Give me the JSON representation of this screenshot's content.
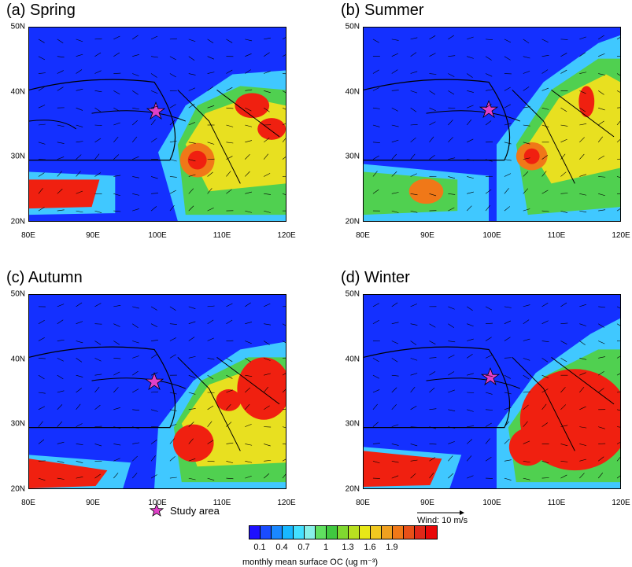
{
  "panels": [
    {
      "title": "(a) Spring"
    },
    {
      "title": "(b) Summer"
    },
    {
      "title": "(c) Autumn"
    },
    {
      "title": "(d) Winter"
    }
  ],
  "axes": {
    "lat_labels": [
      "50N",
      "40N",
      "30N",
      "20N"
    ],
    "lon_labels": [
      "80E",
      "90E",
      "100E",
      "110E",
      "120E"
    ]
  },
  "legend": {
    "study_area_label": "Study area",
    "colorbar_ticks": [
      "0.1",
      "0.4",
      "0.7",
      "1",
      "1.3",
      "1.6",
      "1.9"
    ],
    "colorbar_label": "monthly mean surface OC (ug m⁻³)",
    "wind_label": "Wind: 10 m/s",
    "colors": [
      "#1e10ff",
      "#1a4cff",
      "#1a88ff",
      "#18b8ff",
      "#44e0ff",
      "#88f0e8",
      "#60e060",
      "#40c840",
      "#80d830",
      "#b8e020",
      "#e8e818",
      "#f0c820",
      "#f0a020",
      "#f07818",
      "#e85018",
      "#e02818",
      "#e80808"
    ]
  },
  "map_colors": {
    "low": "#1430ff",
    "mid": "#40c8ff",
    "green": "#50d050",
    "yellow": "#e8e020",
    "red": "#f02010",
    "star": "#e040c8"
  }
}
